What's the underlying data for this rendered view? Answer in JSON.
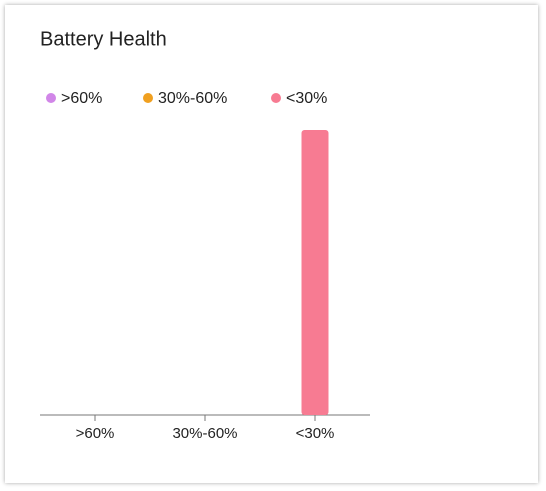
{
  "chart_data": {
    "type": "bar",
    "title": "Battery Health",
    "categories": [
      ">60%",
      "30%-60%",
      "<30%"
    ],
    "values": [
      0,
      0,
      1
    ],
    "colors": [
      "#d186e8",
      "#f0a020",
      "#f77b92"
    ],
    "ylim": [
      0,
      1
    ]
  }
}
